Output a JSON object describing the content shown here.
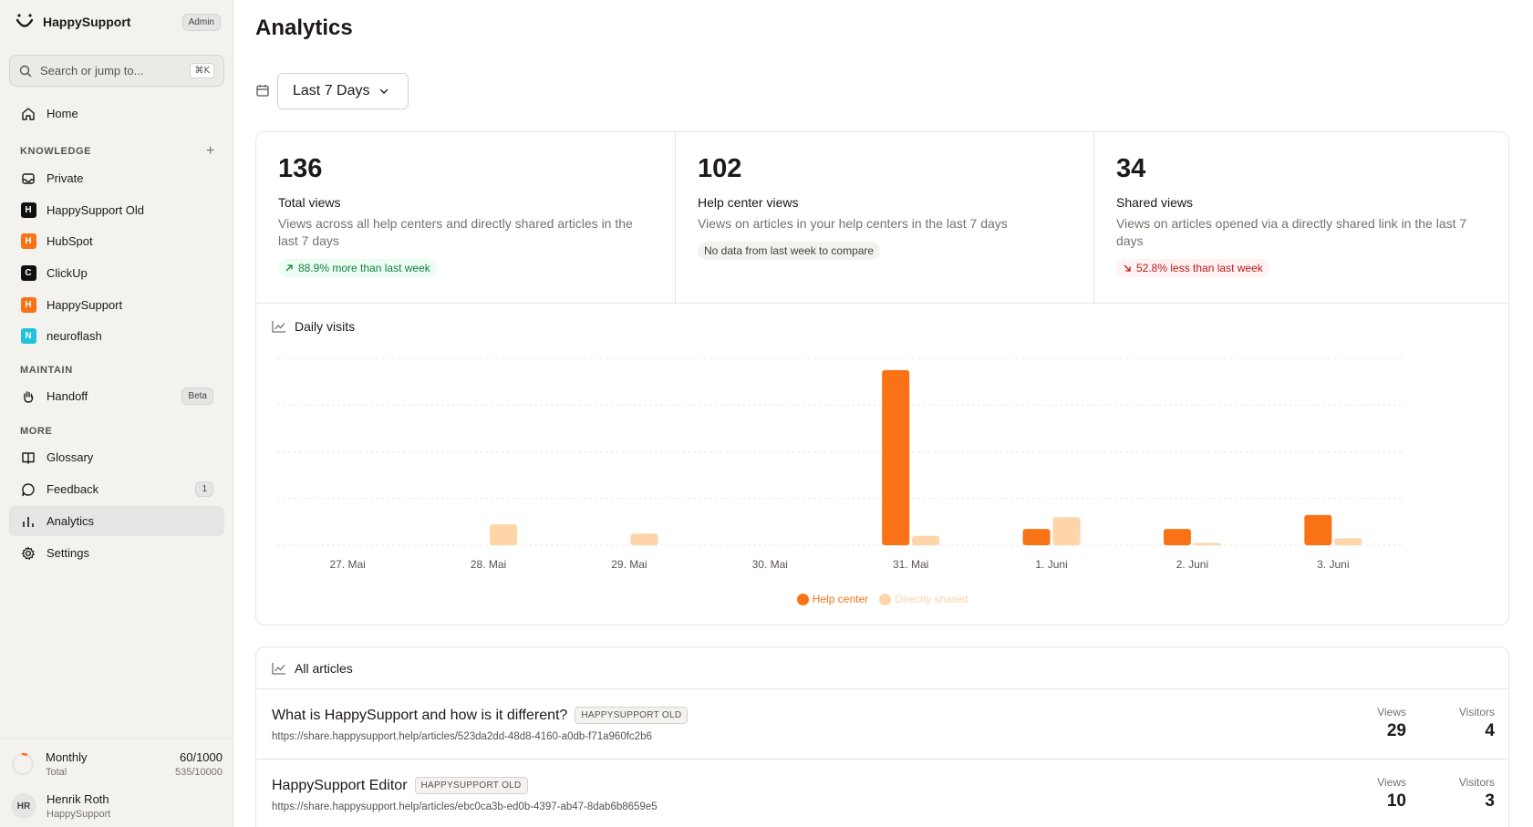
{
  "sidebar": {
    "brand": "HappySupport",
    "admin_badge": "Admin",
    "search_placeholder": "Search or jump to...",
    "search_shortcut": "⌘K",
    "home": "Home",
    "knowledge_title": "KNOWLEDGE",
    "knowledge_items": [
      {
        "label": "Private",
        "icon": "inbox-icon"
      },
      {
        "label": "HappySupport Old",
        "letter": "H",
        "color": "#111111"
      },
      {
        "label": "HubSpot",
        "letter": "H",
        "color": "#f97316"
      },
      {
        "label": "ClickUp",
        "letter": "C",
        "color": "#111111"
      },
      {
        "label": "HappySupport",
        "letter": "H",
        "color": "#f97316"
      },
      {
        "label": "neuroflash",
        "letter": "N",
        "color": "#22c1dc"
      }
    ],
    "maintain_title": "MAINTAIN",
    "handoff": "Handoff",
    "handoff_badge": "Beta",
    "more_title": "MORE",
    "glossary": "Glossary",
    "feedback": "Feedback",
    "feedback_count": "1",
    "analytics": "Analytics",
    "settings": "Settings",
    "usage": {
      "label": "Monthly",
      "sub": "Total",
      "value": "60/1000",
      "total": "535/10000",
      "fraction": 0.06
    },
    "user": {
      "initials": "HR",
      "name": "Henrik Roth",
      "org": "HappySupport"
    }
  },
  "main": {
    "title": "Analytics",
    "range": "Last 7 Days",
    "stats": [
      {
        "value": "136",
        "label": "Total views",
        "desc": "Views across all help centers and directly shared articles in the last 7 days",
        "badge": "88.9% more than last week",
        "trend": "up"
      },
      {
        "value": "102",
        "label": "Help center views",
        "desc": "Views on articles in your help centers in the last 7 days",
        "badge": "No data from last week to compare",
        "trend": "neutral"
      },
      {
        "value": "34",
        "label": "Shared views",
        "desc": "Views on articles opened via a directly shared link in the last 7 days",
        "badge": "52.8% less than last week",
        "trend": "down"
      }
    ],
    "chart_title": "Daily visits",
    "articles_title": "All articles",
    "views_label": "Views",
    "visitors_label": "Visitors",
    "articles": [
      {
        "title": "What is HappySupport and how is it different?",
        "tag": "HAPPYSUPPORT OLD",
        "url": "https://share.happysupport.help/articles/523da2dd-48d8-4160-a0db-f71a960fc2b6",
        "views": "29",
        "visitors": "4"
      },
      {
        "title": "HappySupport Editor",
        "tag": "HAPPYSUPPORT OLD",
        "url": "https://share.happysupport.help/articles/ebc0ca3b-ed0b-4397-ab47-8dab6b8659e5",
        "views": "10",
        "visitors": "3"
      }
    ]
  },
  "chart_data": {
    "type": "bar",
    "title": "Daily visits",
    "categories": [
      "27. Mai",
      "28. Mai",
      "29. Mai",
      "30. Mai",
      "31. Mai",
      "1. Juni",
      "2. Juni",
      "3. Juni"
    ],
    "series": [
      {
        "name": "Help center",
        "color": "#f97316",
        "values": [
          0,
          0,
          0,
          0,
          75,
          7,
          7,
          13
        ]
      },
      {
        "name": "Directly shared",
        "color": "#fdd5a8",
        "values": [
          0,
          9,
          5,
          0,
          4,
          12,
          1,
          3
        ]
      }
    ],
    "ylim": [
      0,
      80
    ],
    "grid": true,
    "legend": "bottom-center"
  }
}
